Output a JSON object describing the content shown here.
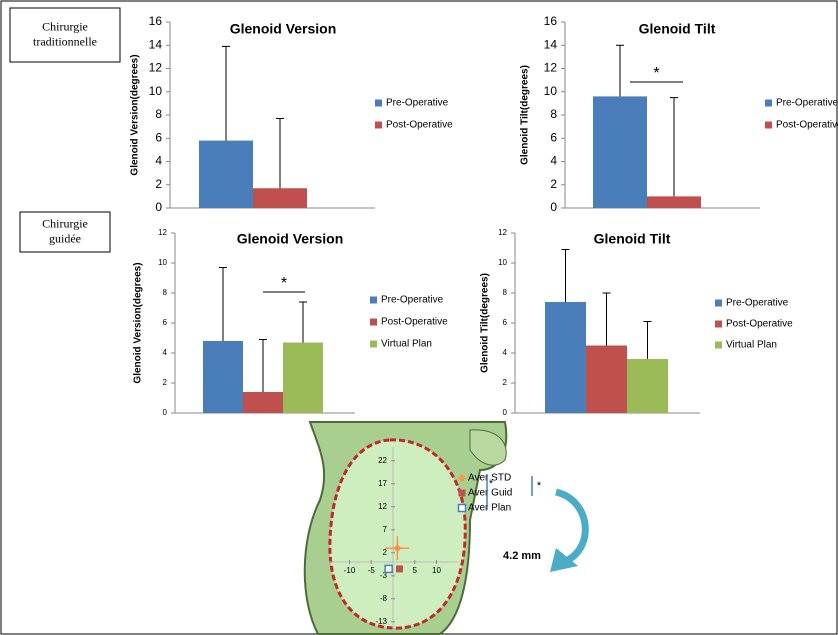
{
  "labels": {
    "traditional": "Chirurgie\ntraditionnelle",
    "guided": "Chirurgie\nguidée"
  },
  "chart_data": [
    {
      "type": "bar",
      "title": "Glenoid Version",
      "ylabel": "Glenoid Version(degrees)",
      "ylim": [
        0,
        16
      ],
      "yticks": [
        0,
        2,
        4,
        6,
        8,
        10,
        12,
        14,
        16
      ],
      "series": [
        {
          "name": "Pre-Operative",
          "color": "#4a7ebb",
          "values": [
            5.8
          ],
          "errors": [
            8.1
          ]
        },
        {
          "name": "Post-Operative",
          "color": "#c0504d",
          "values": [
            1.7
          ],
          "errors": [
            6.0
          ]
        }
      ]
    },
    {
      "type": "bar",
      "title": "Glenoid Tilt",
      "ylabel": "Glenoid Tilt(degrees)",
      "ylim": [
        0,
        16
      ],
      "yticks": [
        0,
        2,
        4,
        6,
        8,
        10,
        12,
        14,
        16
      ],
      "annotation": "*",
      "series": [
        {
          "name": "Pre-Operative",
          "color": "#4a7ebb",
          "values": [
            9.6
          ],
          "errors": [
            4.4
          ]
        },
        {
          "name": "Post-Operative",
          "color": "#c0504d",
          "values": [
            1.0
          ],
          "errors": [
            8.5
          ]
        }
      ]
    },
    {
      "type": "bar",
      "title": "Glenoid Version",
      "ylabel": "Glenoid Version(degrees)",
      "ylim": [
        0,
        12
      ],
      "yticks": [
        0,
        2,
        4,
        6,
        8,
        10,
        12
      ],
      "annotation": "*",
      "series": [
        {
          "name": "Pre-Operative",
          "color": "#4a7ebb",
          "values": [
            4.8
          ],
          "errors": [
            4.9
          ]
        },
        {
          "name": "Post-Operative",
          "color": "#c0504d",
          "values": [
            1.4
          ],
          "errors": [
            3.5
          ]
        },
        {
          "name": "Virtual Plan",
          "color": "#9bbb59",
          "values": [
            4.7
          ],
          "errors": [
            2.7
          ]
        }
      ]
    },
    {
      "type": "bar",
      "title": "Glenoid Tilt",
      "ylabel": "Glenoid Tilt(degrees)",
      "ylim": [
        0,
        12
      ],
      "yticks": [
        0,
        2,
        4,
        6,
        8,
        10,
        12
      ],
      "series": [
        {
          "name": "Pre-Operative",
          "color": "#4a7ebb",
          "values": [
            7.4
          ],
          "errors": [
            3.5
          ]
        },
        {
          "name": "Post-Operative",
          "color": "#c0504d",
          "values": [
            4.5
          ],
          "errors": [
            3.5
          ]
        },
        {
          "name": "Virtual Plan",
          "color": "#9bbb59",
          "values": [
            3.6
          ],
          "errors": [
            2.5
          ]
        }
      ]
    },
    {
      "type": "scatter",
      "xlim": [
        -20,
        15
      ],
      "ylim": [
        -15,
        25
      ],
      "xticks": [
        -10,
        -5,
        5,
        10
      ],
      "yticks": [
        22,
        17,
        12,
        7,
        2,
        -3,
        -8,
        -13
      ],
      "annotations": [
        "*",
        "*",
        "4.2 mm"
      ],
      "series": [
        {
          "name": "Aver STD",
          "color": "#f79646",
          "marker": "diamond",
          "x": [
            1
          ],
          "values": [
            3
          ]
        },
        {
          "name": "Aver Guid",
          "color": "#c0504d",
          "marker": "square",
          "x": [
            1.5
          ],
          "values": [
            -1.5
          ]
        },
        {
          "name": "Aver Plan",
          "color": "#4a7ebb",
          "marker": "open-square",
          "x": [
            -1
          ],
          "values": [
            -1.5
          ]
        }
      ]
    }
  ]
}
